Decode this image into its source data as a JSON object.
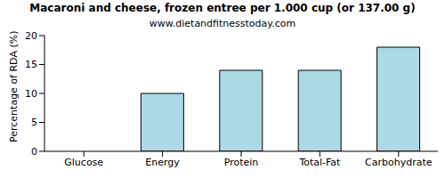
{
  "chart_data": {
    "type": "bar",
    "title": "Macaroni and cheese, frozen entree per 1.000 cup (or 137.00 g)",
    "subtitle": "www.dietandfitnesstoday.com",
    "y_label": "Percentage of RDA (%)",
    "categories": [
      "Glucose",
      "Energy",
      "Protein",
      "Total-Fat",
      "Carbohydrate"
    ],
    "values": [
      0,
      10,
      14,
      14,
      18
    ],
    "color": "#add8e6",
    "ylim": [
      0,
      20
    ],
    "yticks": [
      0,
      5,
      10,
      15,
      20
    ],
    "grid": false
  }
}
